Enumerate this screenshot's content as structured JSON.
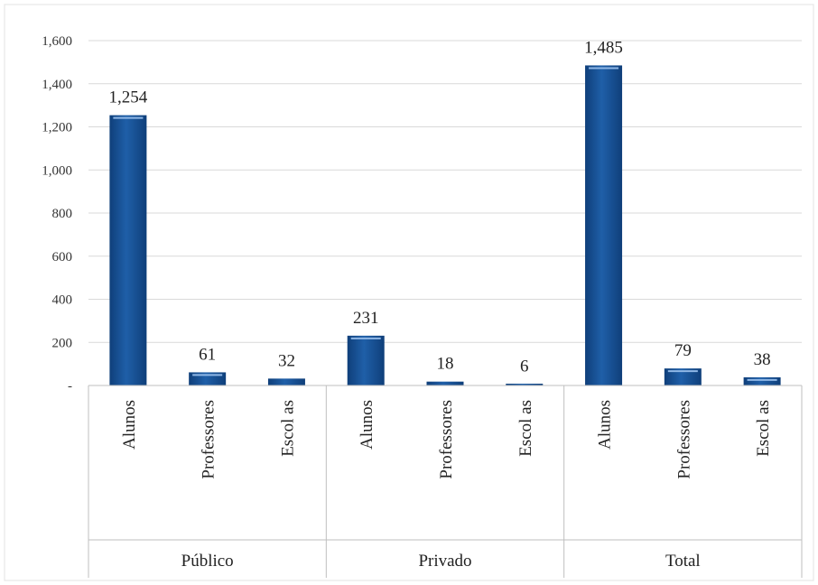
{
  "chart_data": {
    "type": "bar",
    "groups": [
      "Público",
      "Privado",
      "Total"
    ],
    "categories": [
      "Alunos",
      "Professores",
      "Escol as",
      "Alunos",
      "Professores",
      "Escol as",
      "Alunos",
      "Professores",
      "Escol as"
    ],
    "values": [
      1254,
      61,
      32,
      231,
      18,
      6,
      1485,
      79,
      38
    ],
    "value_labels": [
      "1,254",
      "61",
      "32",
      "231",
      "18",
      "6",
      "1,485",
      "79",
      "38"
    ],
    "y_ticks": [
      "-",
      "200",
      "400",
      "600",
      "800",
      "1,000",
      "1,200",
      "1,400",
      "1,600"
    ],
    "ylim": [
      0,
      1600
    ],
    "grid": true,
    "legend": "none",
    "colors": {
      "bar": "#1f5fa8",
      "bar_dark": "#0f3f7a",
      "grid": "#d9d9d9",
      "axis": "#bfbfbf"
    }
  }
}
